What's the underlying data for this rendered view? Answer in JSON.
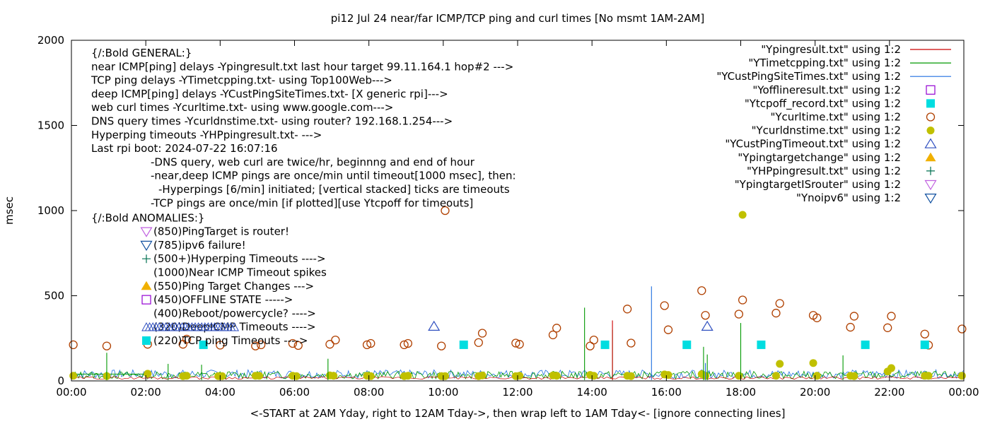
{
  "chart_data": {
    "type": "scatter",
    "title": "pi12 Jul 24  near/far ICMP/TCP ping and curl times [No msmt 1AM-2AM]",
    "xlabel": "<-START at 2AM Yday, right to 12AM Tday->, then wrap left to 1AM Tday<- [ignore connecting lines]",
    "ylabel": "msec",
    "xlim": [
      0,
      24
    ],
    "ylim": [
      0,
      2000
    ],
    "x_ticks": [
      "00:00",
      "02:00",
      "04:00",
      "06:00",
      "08:00",
      "10:00",
      "12:00",
      "14:00",
      "16:00",
      "18:00",
      "20:00",
      "22:00",
      "00:00"
    ],
    "y_ticks": [
      0,
      500,
      1000,
      1500,
      2000
    ],
    "legend_position": "top-right",
    "legend": [
      {
        "label": "\"Ypingresult.txt\" using 1:2",
        "style": "line",
        "color": "#cc0000"
      },
      {
        "label": "\"YTimetcpping.txt\" using 1:2",
        "style": "line",
        "color": "#009900"
      },
      {
        "label": "\"YCustPingSiteTimes.txt\" using 1:2",
        "style": "line",
        "color": "#1f6fe0"
      },
      {
        "label": "\"Yofflineresult.txt\" using 1:2",
        "style": "open-square",
        "color": "#9400d3"
      },
      {
        "label": "\"Ytcpoff_record.txt\" using 1:2",
        "style": "filled-square",
        "color": "#00dde0"
      },
      {
        "label": "\"Ycurltime.txt\" using 1:2",
        "style": "open-circle",
        "color": "#b04000"
      },
      {
        "label": "\"Ycurldnstime.txt\" using 1:2",
        "style": "filled-circle",
        "color": "#c0c000"
      },
      {
        "label": "\"YCustPingTimeout.txt\" using 1:2",
        "style": "open-triangle",
        "color": "#3050c0"
      },
      {
        "label": "\"Ypingtargetchange\" using 1:2",
        "style": "filled-triangle",
        "color": "#f0b000"
      },
      {
        "label": "\"YHPpingresult.txt\" using 1:2",
        "style": "plus",
        "color": "#007050"
      },
      {
        "label": "\"YpingtargetISrouter\" using 1:2",
        "style": "open-triangle-down",
        "color": "#c060e0"
      },
      {
        "label": "\"Ynoipv6\" using 1:2",
        "style": "open-triangle-down",
        "color": "#1050a0"
      }
    ],
    "annotations_general": [
      "{/:Bold GENERAL:}",
      "near ICMP[ping] delays -Ypingresult.txt last hour target 99.11.164.1 hop#2 --->",
      "TCP ping delays -YTimetcpping.txt- using Top100Web--->",
      "deep ICMP[ping] delays -YCustPingSiteTimes.txt- [X generic rpi]--->",
      "web curl times -Ycurltime.txt- using www.google.com--->",
      "DNS query times -Ycurldnstime.txt- using router? 192.168.1.254--->",
      "Hyperping timeouts -YHPpingresult.txt- --->",
      "Last rpi boot: 2024-07-22 16:07:16"
    ],
    "annotations_notes": [
      "-DNS query, web curl are twice/hr, beginnng and end of hour",
      "-near,deep ICMP pings are once/min until timeout[1000 msec], then:",
      "  -Hyperpings [6/min] initiated; [vertical stacked] ticks are timeouts",
      "-TCP pings are once/min [if plotted][use Ytcpoff for timeouts]"
    ],
    "annotations_anomalies_header": "{/:Bold ANOMALIES:}",
    "annotations_anomalies": [
      "(850)PingTarget is router!",
      "(785)ipv6 failure!",
      "(500+)Hyperping Timeouts ---->",
      "(1000)Near ICMP Timeout spikes",
      "(550)Ping Target Changes --->",
      "(450)OFFLINE STATE ----->",
      "(400)Reboot/powercycle? ---->",
      "(320)DeepICMP Timeouts ---->",
      "(220)TCP ping Timeouts ---->"
    ],
    "series": [
      {
        "name": "\"Ycurltime.txt\" using 1:2",
        "marker": "open-circle",
        "points": [
          [
            0.05,
            212
          ],
          [
            0.95,
            205
          ],
          [
            2.05,
            215
          ],
          [
            3.0,
            215
          ],
          [
            3.1,
            245
          ],
          [
            4.0,
            210
          ],
          [
            4.95,
            205
          ],
          [
            5.1,
            212
          ],
          [
            5.95,
            220
          ],
          [
            6.1,
            208
          ],
          [
            6.95,
            215
          ],
          [
            7.1,
            240
          ],
          [
            7.95,
            212
          ],
          [
            8.05,
            220
          ],
          [
            8.95,
            212
          ],
          [
            9.05,
            220
          ],
          [
            9.95,
            205
          ],
          [
            10.05,
            1000
          ],
          [
            10.95,
            225
          ],
          [
            11.05,
            280
          ],
          [
            11.95,
            222
          ],
          [
            12.05,
            215
          ],
          [
            12.95,
            270
          ],
          [
            13.05,
            310
          ],
          [
            13.95,
            205
          ],
          [
            14.05,
            240
          ],
          [
            14.95,
            422
          ],
          [
            15.05,
            222
          ],
          [
            15.95,
            442
          ],
          [
            16.05,
            300
          ],
          [
            16.95,
            530
          ],
          [
            17.05,
            385
          ],
          [
            17.95,
            392
          ],
          [
            18.05,
            475
          ],
          [
            18.95,
            398
          ],
          [
            19.05,
            455
          ],
          [
            19.95,
            385
          ],
          [
            20.05,
            370
          ],
          [
            20.95,
            315
          ],
          [
            21.05,
            380
          ],
          [
            21.95,
            312
          ],
          [
            22.05,
            380
          ],
          [
            22.95,
            275
          ],
          [
            23.05,
            210
          ],
          [
            23.95,
            305
          ]
        ]
      },
      {
        "name": "\"Ycurldnstime.txt\" using 1:2",
        "marker": "filled-circle",
        "points": [
          [
            0.05,
            30
          ],
          [
            0.95,
            28
          ],
          [
            2.05,
            42
          ],
          [
            3.0,
            28
          ],
          [
            3.1,
            30
          ],
          [
            3.95,
            28
          ],
          [
            4.05,
            28
          ],
          [
            4.95,
            30
          ],
          [
            5.05,
            30
          ],
          [
            5.95,
            30
          ],
          [
            6.05,
            28
          ],
          [
            6.95,
            32
          ],
          [
            7.05,
            30
          ],
          [
            7.95,
            30
          ],
          [
            8.05,
            28
          ],
          [
            8.95,
            28
          ],
          [
            9.05,
            30
          ],
          [
            9.95,
            28
          ],
          [
            10.05,
            28
          ],
          [
            10.95,
            28
          ],
          [
            11.05,
            32
          ],
          [
            11.95,
            28
          ],
          [
            12.05,
            30
          ],
          [
            12.95,
            32
          ],
          [
            13.05,
            30
          ],
          [
            13.95,
            35
          ],
          [
            14.05,
            30
          ],
          [
            14.95,
            30
          ],
          [
            15.05,
            28
          ],
          [
            15.95,
            38
          ],
          [
            16.05,
            35
          ],
          [
            16.95,
            40
          ],
          [
            17.05,
            30
          ],
          [
            17.95,
            30
          ],
          [
            18.05,
            975
          ],
          [
            18.95,
            30
          ],
          [
            19.05,
            100
          ],
          [
            19.95,
            105
          ],
          [
            20.05,
            30
          ],
          [
            20.95,
            30
          ],
          [
            21.05,
            28
          ],
          [
            21.95,
            55
          ],
          [
            22.05,
            75
          ],
          [
            22.95,
            30
          ],
          [
            23.05,
            30
          ],
          [
            23.95,
            30
          ]
        ]
      },
      {
        "name": "\"Ytcpoff_record.txt\" using 1:2",
        "marker": "filled-square",
        "points": [
          [
            3.55,
            212
          ],
          [
            10.55,
            212
          ],
          [
            14.35,
            212
          ],
          [
            16.55,
            212
          ],
          [
            18.55,
            212
          ],
          [
            21.35,
            212
          ],
          [
            22.95,
            212
          ]
        ]
      },
      {
        "name": "\"YCustPingTimeout.txt\" using 1:2",
        "marker": "open-triangle",
        "points": [
          [
            9.75,
            320
          ],
          [
            17.1,
            320
          ]
        ]
      },
      {
        "name": "\"YTimetcpping.txt\" using 1:2",
        "marker": "spike",
        "color": "#009900",
        "points": [
          [
            0.95,
            165
          ],
          [
            2.6,
            100
          ],
          [
            3.5,
            95
          ],
          [
            6.9,
            130
          ],
          [
            13.8,
            430
          ],
          [
            14.55,
            300
          ],
          [
            17.0,
            200
          ],
          [
            17.1,
            155
          ],
          [
            18.0,
            340
          ],
          [
            20.75,
            150
          ]
        ]
      },
      {
        "name": "\"YCustPingSiteTimes.txt\" using 1:2",
        "marker": "spike",
        "color": "#1f6fe0",
        "points": [
          [
            15.6,
            555
          ],
          [
            17.05,
            105
          ]
        ]
      },
      {
        "name": "\"Ypingresult.txt\" using 1:2",
        "marker": "spike",
        "color": "#cc0000",
        "points": [
          [
            14.55,
            355
          ]
        ]
      }
    ]
  }
}
